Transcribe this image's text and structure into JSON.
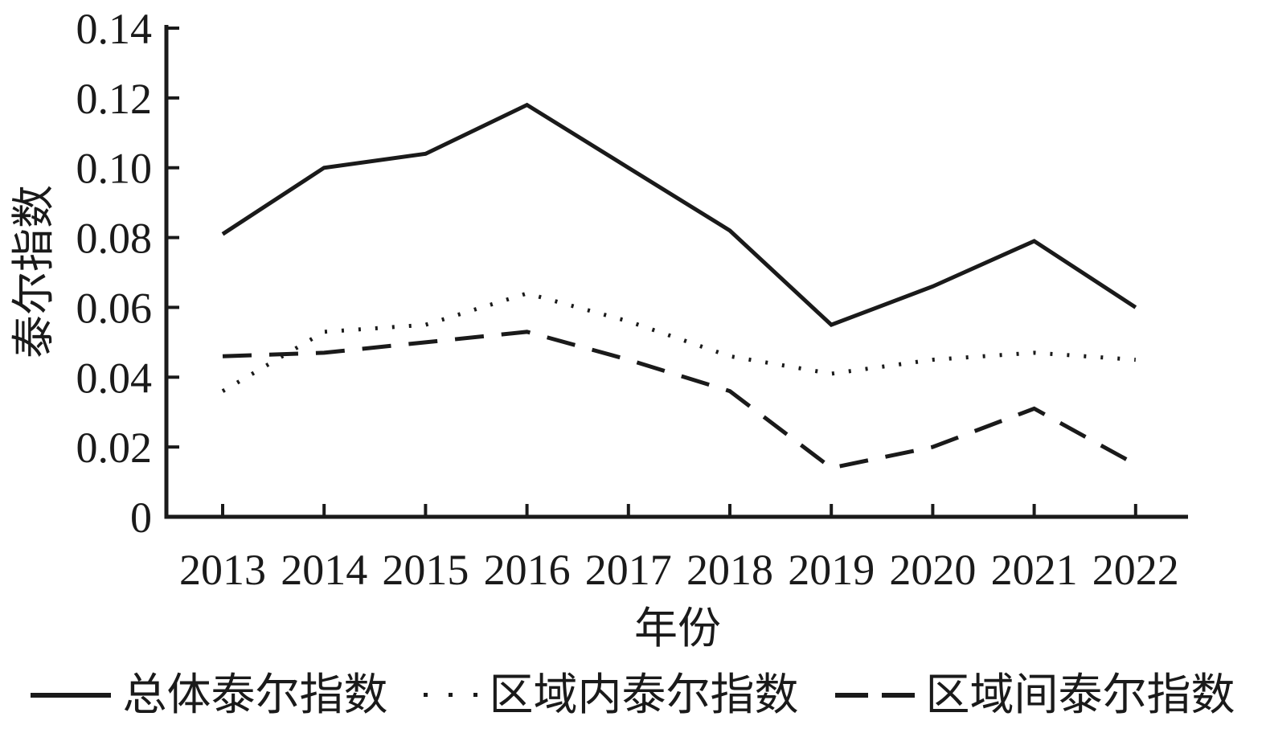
{
  "chart_data": {
    "type": "line",
    "x": [
      "2013",
      "2014",
      "2015",
      "2016",
      "2017",
      "2018",
      "2019",
      "2020",
      "2021",
      "2022"
    ],
    "series": [
      {
        "name": "总体泰尔指数",
        "line_style": "solid",
        "values": [
          0.081,
          0.1,
          0.104,
          0.118,
          0.1,
          0.082,
          0.055,
          0.066,
          0.079,
          0.06
        ]
      },
      {
        "name": "区域内泰尔指数",
        "line_style": "dotted",
        "values": [
          0.036,
          0.053,
          0.055,
          0.064,
          0.056,
          0.046,
          0.041,
          0.045,
          0.047,
          0.045
        ]
      },
      {
        "name": "区域间泰尔指数",
        "line_style": "dashed",
        "values": [
          0.046,
          0.047,
          0.05,
          0.053,
          0.045,
          0.036,
          0.014,
          0.02,
          0.031,
          0.015
        ]
      }
    ],
    "xlabel": "年份",
    "ylabel": "泰尔指数",
    "ylim": [
      0,
      0.14
    ],
    "ytick_labels": [
      "0",
      "0.02",
      "0.04",
      "0.06",
      "0.08",
      "0.10",
      "0.12",
      "0.14"
    ],
    "grid": false,
    "legend_position": "bottom",
    "line_color": "#1a1a1a"
  }
}
